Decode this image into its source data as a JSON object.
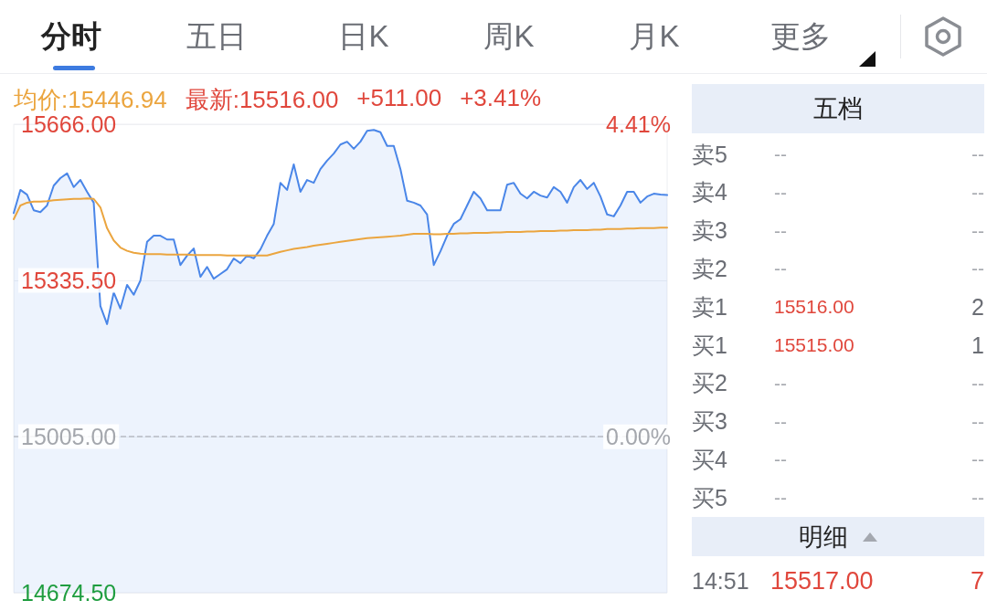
{
  "chart_data": [
    {
      "type": "area",
      "annotations": [
        "分时",
        "五日",
        "日K",
        "周K",
        "月K",
        "更多",
        "均价:15446.94",
        "最新:15516.00",
        "+511.00",
        "+3.41%"
      ],
      "categories": [
        null,
        null,
        null,
        null,
        null,
        null,
        null,
        null,
        null,
        null,
        null,
        null,
        null,
        null,
        null,
        null,
        null,
        null,
        null,
        null,
        null,
        null,
        null,
        null,
        null,
        null,
        null,
        null,
        null,
        null,
        null,
        null,
        null,
        null,
        null,
        null,
        null,
        null,
        null,
        null,
        null,
        null,
        null,
        null,
        null,
        null,
        null,
        null,
        null,
        null,
        null,
        null,
        null,
        null,
        null,
        null,
        null,
        null,
        null,
        null,
        null,
        null,
        null,
        null,
        null,
        null,
        null,
        null,
        null,
        null,
        null,
        null,
        null,
        null,
        null,
        null,
        null,
        null,
        null,
        null,
        null,
        null,
        null,
        null,
        null,
        null,
        null,
        null,
        null,
        null,
        null,
        null,
        null,
        null,
        null,
        null,
        null,
        null,
        null
      ],
      "series": [
        {
          "type": "area",
          "color": "#4a86e8",
          "values": [
            15478,
            15527,
            15517,
            15484,
            15480,
            15494,
            15536,
            15552,
            15562,
            15533,
            15548,
            15523,
            15500,
            15281,
            15243,
            15310,
            15276,
            15326,
            15305,
            15335,
            15417,
            15430,
            15430,
            15422,
            15422,
            15368,
            15388,
            15403,
            15343,
            15364,
            15339,
            15349,
            15359,
            15382,
            15372,
            15388,
            15382,
            15401,
            15430,
            15455,
            15542,
            15527,
            15581,
            15523,
            15548,
            15542,
            15571,
            15589,
            15604,
            15623,
            15629,
            15614,
            15629,
            15652,
            15654,
            15649,
            15620,
            15620,
            15571,
            15504,
            15500,
            15494,
            15475,
            15368,
            15397,
            15430,
            15455,
            15465,
            15494,
            15523,
            15509,
            15484,
            15484,
            15484,
            15538,
            15542,
            15519,
            15509,
            15523,
            15515,
            15511,
            15533,
            15523,
            15500,
            15533,
            15548,
            15529,
            15542,
            15513,
            15475,
            15471,
            15494,
            15523,
            15523,
            15500,
            15513,
            15519,
            15517,
            15516
          ]
        },
        {
          "type": "line",
          "color": "#eba53f",
          "values": [
            15465,
            15494,
            15500,
            15502,
            15502,
            15503,
            15505,
            15506,
            15507,
            15508,
            15508,
            15509,
            15508,
            15490,
            15446,
            15420,
            15405,
            15398,
            15394,
            15392,
            15391,
            15391,
            15391,
            15390,
            15390,
            15390,
            15390,
            15389,
            15389,
            15389,
            15389,
            15389,
            15388,
            15388,
            15388,
            15388,
            15388,
            15388,
            15388,
            15392,
            15396,
            15399,
            15402,
            15404,
            15406,
            15409,
            15411,
            15413,
            15415,
            15417,
            15419,
            15421,
            15423,
            15425,
            15426,
            15427,
            15428,
            15429,
            15430,
            15432,
            15434,
            15434,
            15434,
            15433,
            15433,
            15434,
            15434,
            15435,
            15435,
            15436,
            15436,
            15436,
            15437,
            15437,
            15438,
            15438,
            15438,
            15439,
            15439,
            15440,
            15440,
            15440,
            15441,
            15441,
            15442,
            15442,
            15442,
            15443,
            15443,
            15444,
            15444,
            15444,
            15445,
            15445,
            15446,
            15446,
            15446,
            15447,
            15447
          ]
        }
      ],
      "ylim": [
        14674.5,
        15666
      ],
      "yticks": [
        {
          "value": 15666,
          "label": "15666.00"
        },
        {
          "value": 15335.5,
          "label": "15335.50"
        },
        {
          "value": 15005,
          "label": "15005.00"
        },
        {
          "value": 14674.5,
          "label": "14674.50"
        }
      ],
      "y2lim": [
        -2.2,
        4.41
      ],
      "y2ticks": [
        {
          "value": 4.41,
          "label": "4.41%"
        },
        {
          "value": 0,
          "label": "0.00%"
        }
      ],
      "ref_lines": [
        {
          "axis": "y",
          "value": 15005,
          "color": "#b8bcc4",
          "line_style": "dashed"
        }
      ],
      "grid": "y"
    },
    {
      "type": "other",
      "title": "五档",
      "subtitle": "明细",
      "annotations": [
        "卖5",
        "--",
        "--",
        "卖4",
        "--",
        "--",
        "卖3",
        "--",
        "--",
        "卖2",
        "--",
        "--",
        "卖1",
        "15516.00",
        "2",
        "买1",
        "15515.00",
        "1",
        "买2",
        "--",
        "--",
        "买3",
        "--",
        "--",
        "买4",
        "--",
        "--",
        "买5",
        "--",
        "--",
        "14:51",
        "15517.00",
        "7"
      ]
    }
  ]
}
